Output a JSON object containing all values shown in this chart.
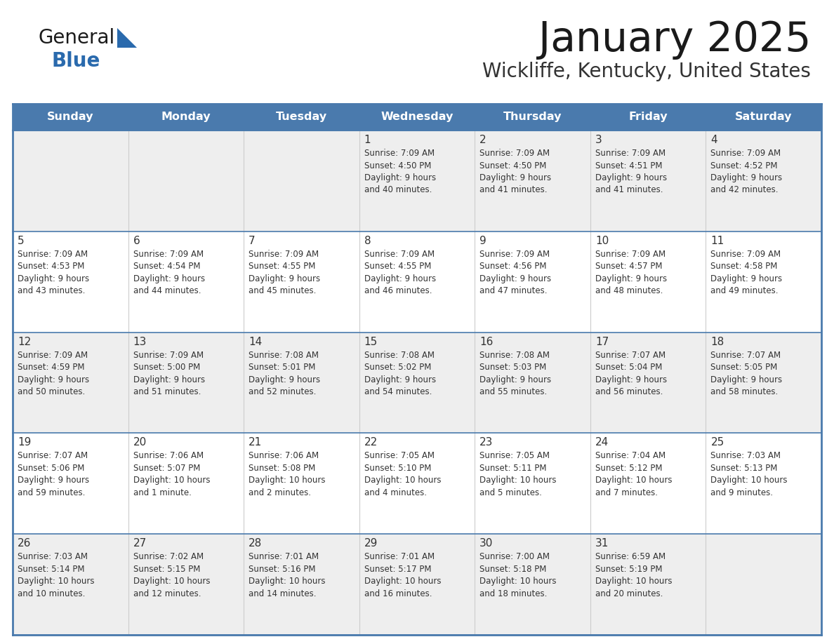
{
  "title": "January 2025",
  "subtitle": "Wickliffe, Kentucky, United States",
  "days_of_week": [
    "Sunday",
    "Monday",
    "Tuesday",
    "Wednesday",
    "Thursday",
    "Friday",
    "Saturday"
  ],
  "header_bg": "#4a7aad",
  "header_text": "#ffffff",
  "cell_bg_alt": "#eeeeee",
  "cell_bg_white": "#ffffff",
  "row_border_color": "#4a7aad",
  "col_border_color": "#cccccc",
  "text_color": "#333333",
  "title_color": "#1a1a1a",
  "subtitle_color": "#333333",
  "logo_dark": "#1a1a1a",
  "logo_blue": "#2a6aad",
  "triangle_color": "#2a6aad",
  "calendar_data": [
    [
      null,
      null,
      null,
      {
        "day": "1",
        "sunrise": "7:09 AM",
        "sunset": "4:50 PM",
        "daylight": "9 hours\nand 40 minutes."
      },
      {
        "day": "2",
        "sunrise": "7:09 AM",
        "sunset": "4:50 PM",
        "daylight": "9 hours\nand 41 minutes."
      },
      {
        "day": "3",
        "sunrise": "7:09 AM",
        "sunset": "4:51 PM",
        "daylight": "9 hours\nand 41 minutes."
      },
      {
        "day": "4",
        "sunrise": "7:09 AM",
        "sunset": "4:52 PM",
        "daylight": "9 hours\nand 42 minutes."
      }
    ],
    [
      {
        "day": "5",
        "sunrise": "7:09 AM",
        "sunset": "4:53 PM",
        "daylight": "9 hours\nand 43 minutes."
      },
      {
        "day": "6",
        "sunrise": "7:09 AM",
        "sunset": "4:54 PM",
        "daylight": "9 hours\nand 44 minutes."
      },
      {
        "day": "7",
        "sunrise": "7:09 AM",
        "sunset": "4:55 PM",
        "daylight": "9 hours\nand 45 minutes."
      },
      {
        "day": "8",
        "sunrise": "7:09 AM",
        "sunset": "4:55 PM",
        "daylight": "9 hours\nand 46 minutes."
      },
      {
        "day": "9",
        "sunrise": "7:09 AM",
        "sunset": "4:56 PM",
        "daylight": "9 hours\nand 47 minutes."
      },
      {
        "day": "10",
        "sunrise": "7:09 AM",
        "sunset": "4:57 PM",
        "daylight": "9 hours\nand 48 minutes."
      },
      {
        "day": "11",
        "sunrise": "7:09 AM",
        "sunset": "4:58 PM",
        "daylight": "9 hours\nand 49 minutes."
      }
    ],
    [
      {
        "day": "12",
        "sunrise": "7:09 AM",
        "sunset": "4:59 PM",
        "daylight": "9 hours\nand 50 minutes."
      },
      {
        "day": "13",
        "sunrise": "7:09 AM",
        "sunset": "5:00 PM",
        "daylight": "9 hours\nand 51 minutes."
      },
      {
        "day": "14",
        "sunrise": "7:08 AM",
        "sunset": "5:01 PM",
        "daylight": "9 hours\nand 52 minutes."
      },
      {
        "day": "15",
        "sunrise": "7:08 AM",
        "sunset": "5:02 PM",
        "daylight": "9 hours\nand 54 minutes."
      },
      {
        "day": "16",
        "sunrise": "7:08 AM",
        "sunset": "5:03 PM",
        "daylight": "9 hours\nand 55 minutes."
      },
      {
        "day": "17",
        "sunrise": "7:07 AM",
        "sunset": "5:04 PM",
        "daylight": "9 hours\nand 56 minutes."
      },
      {
        "day": "18",
        "sunrise": "7:07 AM",
        "sunset": "5:05 PM",
        "daylight": "9 hours\nand 58 minutes."
      }
    ],
    [
      {
        "day": "19",
        "sunrise": "7:07 AM",
        "sunset": "5:06 PM",
        "daylight": "9 hours\nand 59 minutes."
      },
      {
        "day": "20",
        "sunrise": "7:06 AM",
        "sunset": "5:07 PM",
        "daylight": "10 hours\nand 1 minute."
      },
      {
        "day": "21",
        "sunrise": "7:06 AM",
        "sunset": "5:08 PM",
        "daylight": "10 hours\nand 2 minutes."
      },
      {
        "day": "22",
        "sunrise": "7:05 AM",
        "sunset": "5:10 PM",
        "daylight": "10 hours\nand 4 minutes."
      },
      {
        "day": "23",
        "sunrise": "7:05 AM",
        "sunset": "5:11 PM",
        "daylight": "10 hours\nand 5 minutes."
      },
      {
        "day": "24",
        "sunrise": "7:04 AM",
        "sunset": "5:12 PM",
        "daylight": "10 hours\nand 7 minutes."
      },
      {
        "day": "25",
        "sunrise": "7:03 AM",
        "sunset": "5:13 PM",
        "daylight": "10 hours\nand 9 minutes."
      }
    ],
    [
      {
        "day": "26",
        "sunrise": "7:03 AM",
        "sunset": "5:14 PM",
        "daylight": "10 hours\nand 10 minutes."
      },
      {
        "day": "27",
        "sunrise": "7:02 AM",
        "sunset": "5:15 PM",
        "daylight": "10 hours\nand 12 minutes."
      },
      {
        "day": "28",
        "sunrise": "7:01 AM",
        "sunset": "5:16 PM",
        "daylight": "10 hours\nand 14 minutes."
      },
      {
        "day": "29",
        "sunrise": "7:01 AM",
        "sunset": "5:17 PM",
        "daylight": "10 hours\nand 16 minutes."
      },
      {
        "day": "30",
        "sunrise": "7:00 AM",
        "sunset": "5:18 PM",
        "daylight": "10 hours\nand 18 minutes."
      },
      {
        "day": "31",
        "sunrise": "6:59 AM",
        "sunset": "5:19 PM",
        "daylight": "10 hours\nand 20 minutes."
      },
      null
    ]
  ]
}
